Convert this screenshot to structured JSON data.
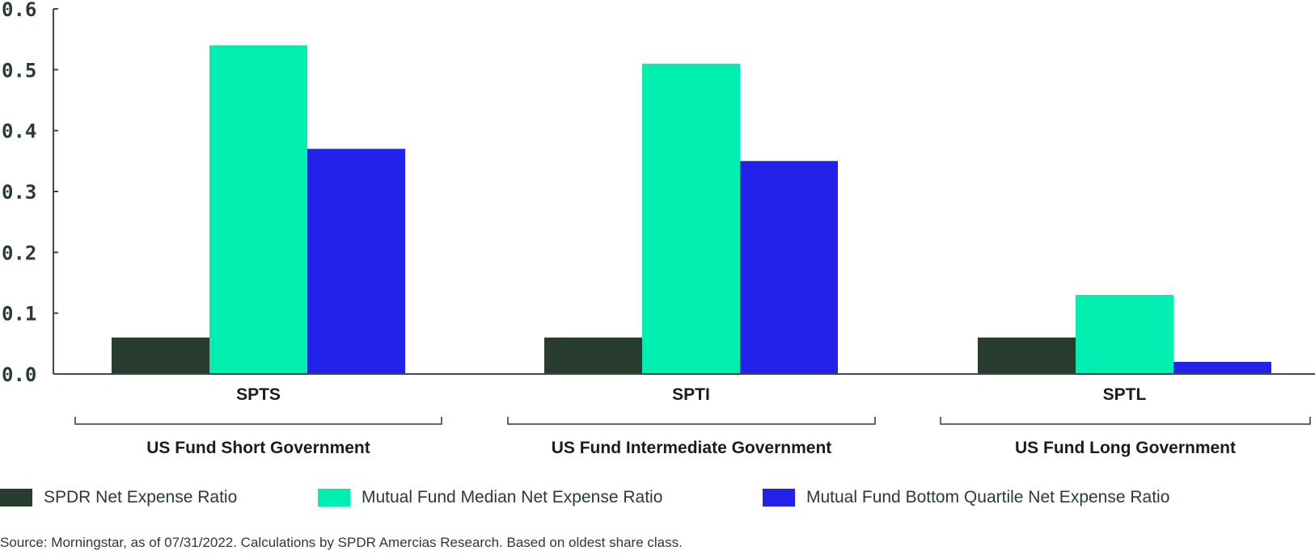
{
  "chart_data": {
    "type": "bar",
    "title": "",
    "xlabel": "",
    "ylabel": "",
    "ylim": [
      0,
      0.6
    ],
    "yticks": [
      "0.0",
      "0.1",
      "0.2",
      "0.3",
      "0.4",
      "0.5",
      "0.6"
    ],
    "categories": [
      "SPTS",
      "SPTI",
      "SPTL"
    ],
    "groups": [
      "US Fund Short Government",
      "US Fund Intermediate Government",
      "US Fund Long Government"
    ],
    "series": [
      {
        "name": "SPDR Net Expense Ratio",
        "color": "#283d30",
        "values": [
          0.06,
          0.06,
          0.06
        ]
      },
      {
        "name": "Mutual Fund Median Net Expense Ratio",
        "color": "#00efb1",
        "values": [
          0.54,
          0.51,
          0.13
        ]
      },
      {
        "name": "Mutual Fund Bottom Quartile Net Expense Ratio",
        "color": "#2121ea",
        "values": [
          0.37,
          0.35,
          0.02
        ]
      }
    ],
    "legend_position": "bottom-left"
  },
  "source": "Source: Morningstar, as of 07/31/2022. Calculations by SPDR Amercias Research. Based on oldest share class."
}
